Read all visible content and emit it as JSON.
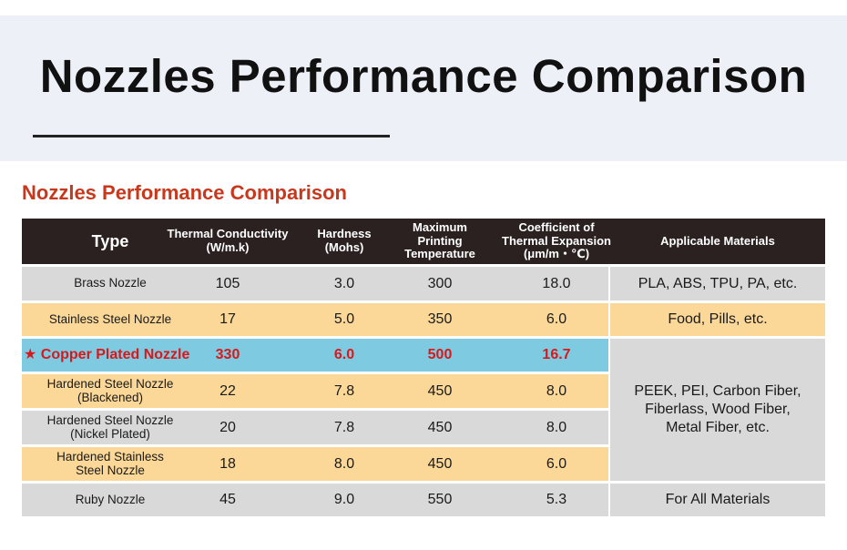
{
  "banner": {
    "title": "Nozzles Performance Comparison"
  },
  "subtitle": "Nozzles Performance Comparison",
  "colors": {
    "header": "#2b2121",
    "grey": "#d9d9d9",
    "yellow": "#fbd898",
    "highlight": "#7ecae0",
    "accent": "#d8191c"
  },
  "table": {
    "headers": {
      "type": "Type",
      "thermal_line1": "Thermal Conductivity",
      "thermal_line2": "(W/m.k)",
      "hardness_line1": "Hardness",
      "hardness_line2": "(Mohs)",
      "temp_line1": "Maximum",
      "temp_line2": "Printing",
      "temp_line3": "Temperature",
      "coef_line1": "Coefficient of",
      "coef_line2": "Thermal Expansion",
      "coef_line3": "(μm/m・℃)",
      "materials": "Applicable Materials"
    },
    "rows": [
      {
        "type_line1": "Brass Nozzle",
        "type_line2": "",
        "thermal": "105",
        "hardness": "3.0",
        "temp": "300",
        "coef": "18.0"
      },
      {
        "type_line1": "Stainless Steel Nozzle",
        "type_line2": "",
        "thermal": "17",
        "hardness": "5.0",
        "temp": "350",
        "coef": "6.0"
      },
      {
        "type_line1": "★ Copper Plated Nozzle",
        "type_line2": "",
        "thermal": "330",
        "hardness": "6.0",
        "temp": "500",
        "coef": "16.7"
      },
      {
        "type_line1": "Hardened Steel Nozzle",
        "type_line2": "(Blackened)",
        "thermal": "22",
        "hardness": "7.8",
        "temp": "450",
        "coef": "8.0"
      },
      {
        "type_line1": "Hardened Steel Nozzle",
        "type_line2": "(Nickel Plated)",
        "thermal": "20",
        "hardness": "7.8",
        "temp": "450",
        "coef": "8.0"
      },
      {
        "type_line1": "Hardened Stainless",
        "type_line2": "Steel Nozzle",
        "thermal": "18",
        "hardness": "8.0",
        "temp": "450",
        "coef": "6.0"
      },
      {
        "type_line1": "Ruby Nozzle",
        "type_line2": "",
        "thermal": "45",
        "hardness": "9.0",
        "temp": "550",
        "coef": "5.3"
      }
    ],
    "materials": {
      "brass": "PLA, ABS, TPU, PA, etc.",
      "stainless": "Food, Pills, etc.",
      "group_line1": "PEEK, PEI, Carbon Fiber,",
      "group_line2": "Fiberlass, Wood Fiber,",
      "group_line3": "Metal Fiber, etc.",
      "ruby": "For All Materials"
    }
  }
}
